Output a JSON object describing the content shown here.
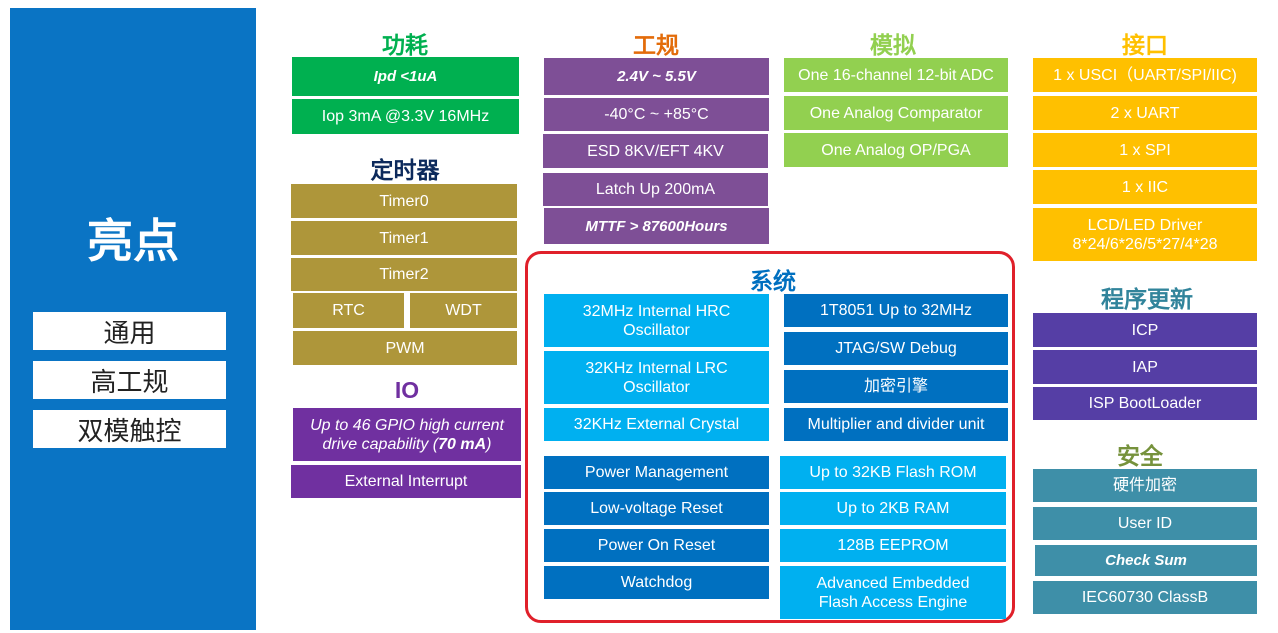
{
  "highlights": {
    "title": "亮点",
    "items": [
      "通用",
      "高工规",
      "双模触控"
    ],
    "color": "#0a74c4"
  },
  "power": {
    "title": "功耗",
    "color": "#00b050",
    "items": [
      "Ipd <1uA",
      "Iop 3mA @3.3V 16MHz"
    ]
  },
  "timer": {
    "title": "定时器",
    "color": "#0d2a5c",
    "items": [
      "Timer0",
      "Timer1",
      "Timer2",
      "RTC",
      "WDT",
      "PWM"
    ]
  },
  "io": {
    "title": "IO",
    "color": "#7030a0",
    "items": [
      "Up to 46 GPIO high current drive capability (",
      "70 mA",
      ")",
      "External Interrupt"
    ]
  },
  "reliability": {
    "title": "工规",
    "color": "#e36c0a",
    "items": [
      "2.4V ~  5.5V",
      "-40°C ~ +85°C",
      "ESD 8KV/EFT 4KV",
      "Latch Up 200mA",
      "MTTF > 87600Hours"
    ]
  },
  "analog": {
    "title": "模拟",
    "color": "#92d050",
    "items": [
      "One 16-channel 12-bit ADC",
      "One Analog Comparator",
      "One Analog OP/PGA"
    ]
  },
  "interface": {
    "title": "接口",
    "color": "#ffc000",
    "items": [
      "1 x USCI（UART/SPI/IIC)",
      "2 x UART",
      "1 x SPI",
      "1 x IIC",
      "LCD/LED Driver",
      "8*24/6*26/5*27/4*28"
    ]
  },
  "system": {
    "title": "系统",
    "color": "#0070c0",
    "border_color": "#e0202a",
    "clock": [
      "32MHz Internal HRC Oscillator",
      "32KHz Internal LRC Oscillator",
      "32KHz External  Crystal"
    ],
    "core": [
      "1T8051 Up to 32MHz",
      "JTAG/SW Debug",
      "加密引擎",
      "Multiplier and divider unit"
    ],
    "power": [
      "Power Management",
      "Low-voltage Reset",
      "Power On Reset",
      "Watchdog"
    ],
    "memory": [
      "Up to 32KB Flash ROM",
      "Up to 2KB RAM",
      "128B EEPROM",
      "Advanced Embedded Flash Access Engine"
    ]
  },
  "update": {
    "title": "程序更新",
    "color": "#31849b",
    "items": [
      "ICP",
      "IAP",
      "ISP BootLoader"
    ]
  },
  "security": {
    "title": "安全",
    "color": "#76923c",
    "items": [
      "硬件加密",
      "User ID",
      "Check Sum",
      "IEC60730 ClassB"
    ]
  }
}
